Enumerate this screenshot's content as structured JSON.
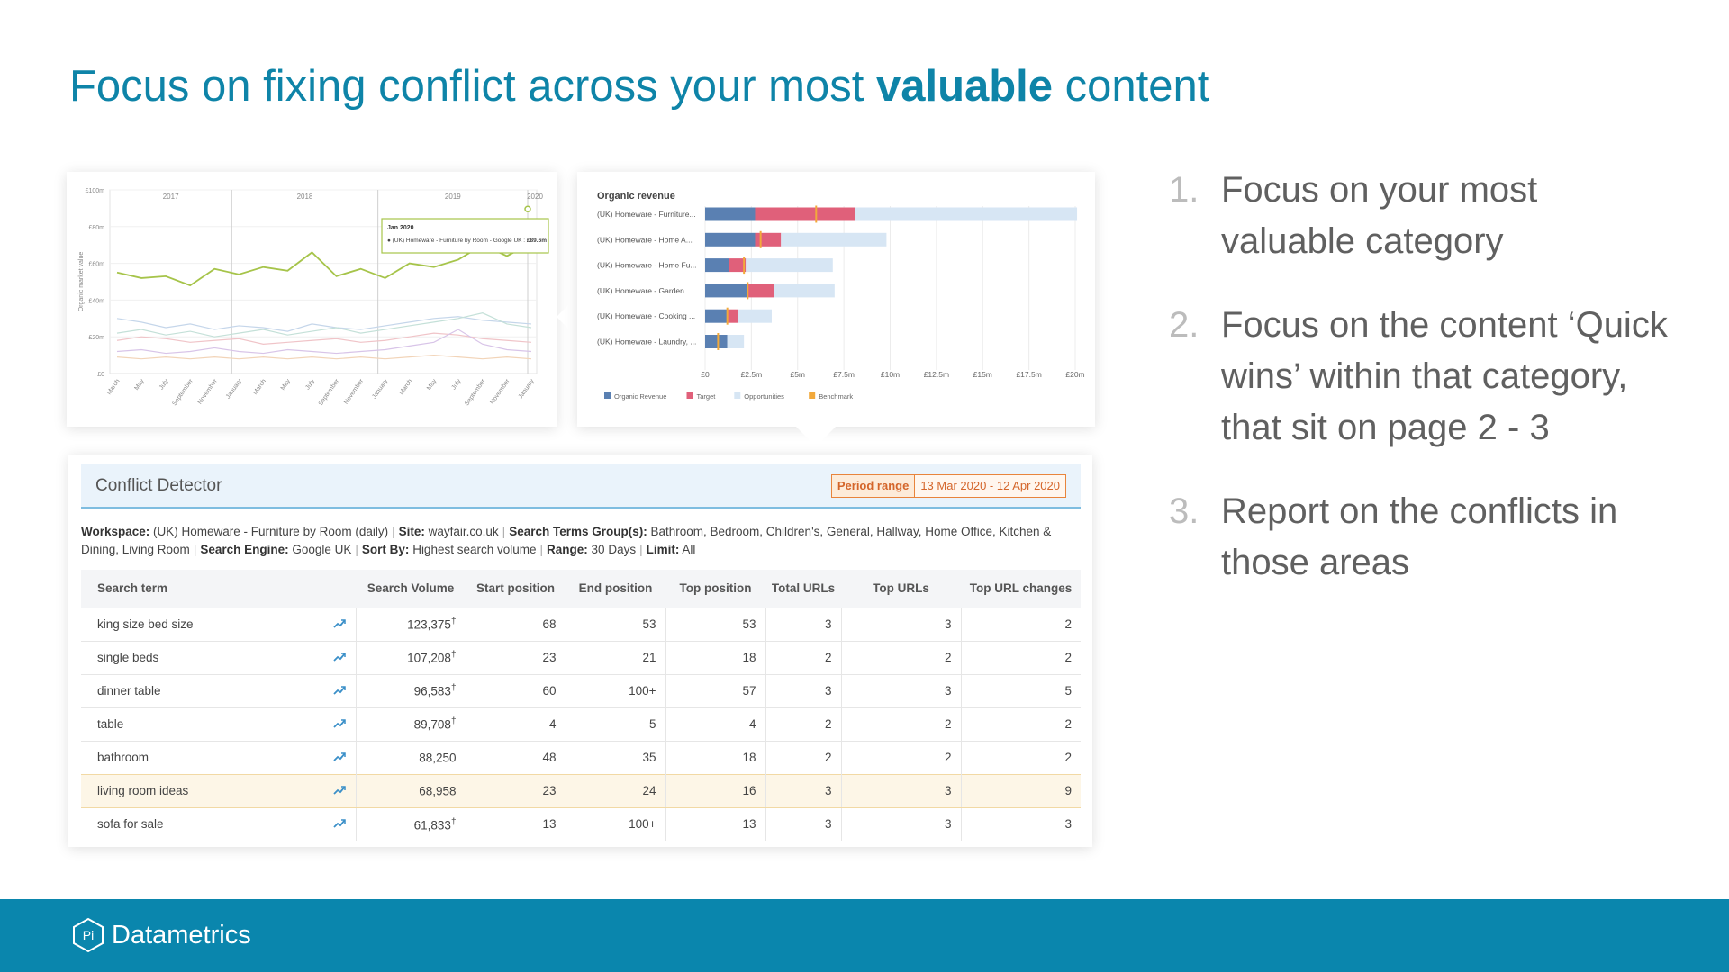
{
  "slide": {
    "title_part1": "Focus on fixing conflict across your most ",
    "title_bold": "valuable",
    "title_part2": " content"
  },
  "line_chart": {
    "y_axis_label": "Organic market value",
    "y_ticks": [
      "£0",
      "£20m",
      "£40m",
      "£60m",
      "£80m",
      "£100m"
    ],
    "years": [
      "2017",
      "2018",
      "2019",
      "2020"
    ],
    "x_ticks": [
      "March",
      "May",
      "July",
      "September",
      "November",
      "January",
      "March",
      "May",
      "July",
      "September",
      "November",
      "January",
      "March",
      "May",
      "July",
      "September",
      "November",
      "January"
    ],
    "tooltip_title": "Jan 2020",
    "tooltip_series": "● (UK) Homeware - Furniture by Room - Google UK : ",
    "tooltip_value": "£89.6m",
    "main_series_color": "#a6c44a"
  },
  "chart_data": {
    "type": "bar",
    "title": "Organic revenue",
    "categories": [
      "(UK) Homeware - Furniture...",
      "(UK) Homeware - Home A...",
      "(UK) Homeware - Home Fu...",
      "(UK) Homeware - Garden ...",
      "(UK) Homeware - Cooking ...",
      "(UK) Homeware - Laundry, ..."
    ],
    "series": [
      {
        "name": "Organic Revenue",
        "color": "#5a80b2",
        "values": [
          2.7,
          2.7,
          1.3,
          2.3,
          1.2,
          1.2
        ]
      },
      {
        "name": "Target",
        "color": "#e0607a",
        "values": [
          5.4,
          1.4,
          0.9,
          1.4,
          0.6,
          0
        ]
      },
      {
        "name": "Opportunities",
        "color": "#d7e6f4",
        "values": [
          12.0,
          5.7,
          4.7,
          3.3,
          1.8,
          0.9
        ]
      },
      {
        "name": "Benchmark",
        "color": "#f2a93b",
        "values": [
          6.0,
          3.0,
          2.1,
          2.3,
          1.2,
          0.7
        ]
      }
    ],
    "x_ticks": [
      "£0",
      "£2.5m",
      "£5m",
      "£7.5m",
      "£10m",
      "£12.5m",
      "£15m",
      "£17.5m",
      "£20m"
    ],
    "xlim": [
      0,
      20
    ],
    "legend_position": "bottom-left"
  },
  "conflict_detector": {
    "title": "Conflict Detector",
    "period_label": "Period range",
    "period_value": "13 Mar 2020 - 12 Apr 2020",
    "meta": [
      {
        "label": "Workspace:",
        "value": " (UK) Homeware - Furniture by Room (daily)"
      },
      {
        "label": "Site:",
        "value": " wayfair.co.uk"
      },
      {
        "label": "Search Terms Group(s):",
        "value": " Bathroom, Bedroom, Children's, General, Hallway, Home Office, Kitchen & Dining, Living Room"
      },
      {
        "label": "Search Engine:",
        "value": " Google UK"
      },
      {
        "label": "Sort By:",
        "value": " Highest search volume"
      },
      {
        "label": "Range:",
        "value": " 30 Days"
      },
      {
        "label": "Limit:",
        "value": " All"
      }
    ],
    "columns": [
      "Search term",
      "Search Volume",
      "Start position",
      "End position",
      "Top position",
      "Total URLs",
      "Top URLs",
      "Top URL changes"
    ],
    "rows": [
      {
        "term": "king size bed size",
        "volume": "123,375",
        "dagger": "†",
        "start": "68",
        "end": "53",
        "top": "53",
        "total": "3",
        "top_urls": "3",
        "changes": "2",
        "highlight": false
      },
      {
        "term": "single beds",
        "volume": "107,208",
        "dagger": "†",
        "start": "23",
        "end": "21",
        "top": "18",
        "total": "2",
        "top_urls": "2",
        "changes": "2",
        "highlight": false
      },
      {
        "term": "dinner table",
        "volume": "96,583",
        "dagger": "†",
        "start": "60",
        "end": "100+",
        "top": "57",
        "total": "3",
        "top_urls": "3",
        "changes": "5",
        "highlight": false
      },
      {
        "term": "table",
        "volume": "89,708",
        "dagger": "†",
        "start": "4",
        "end": "5",
        "top": "4",
        "total": "2",
        "top_urls": "2",
        "changes": "2",
        "highlight": false
      },
      {
        "term": "bathroom",
        "volume": "88,250",
        "dagger": "",
        "start": "48",
        "end": "35",
        "top": "18",
        "total": "2",
        "top_urls": "2",
        "changes": "2",
        "highlight": false
      },
      {
        "term": "living room ideas",
        "volume": "68,958",
        "dagger": "",
        "start": "23",
        "end": "24",
        "top": "16",
        "total": "3",
        "top_urls": "3",
        "changes": "9",
        "highlight": true
      },
      {
        "term": "sofa for sale",
        "volume": "61,833",
        "dagger": "†",
        "start": "13",
        "end": "100+",
        "top": "13",
        "total": "3",
        "top_urls": "3",
        "changes": "3",
        "highlight": false
      }
    ]
  },
  "points": [
    {
      "num": "1.",
      "text": "Focus on your most valuable category"
    },
    {
      "num": "2.",
      "text": "Focus on the content ‘Quick wins’ within that category, that sit on page 2 - 3"
    },
    {
      "num": "3.",
      "text": "Report on the conflicts in those areas"
    }
  ],
  "footer": {
    "brand": "Datametrics",
    "logo_mark": "Pi"
  }
}
